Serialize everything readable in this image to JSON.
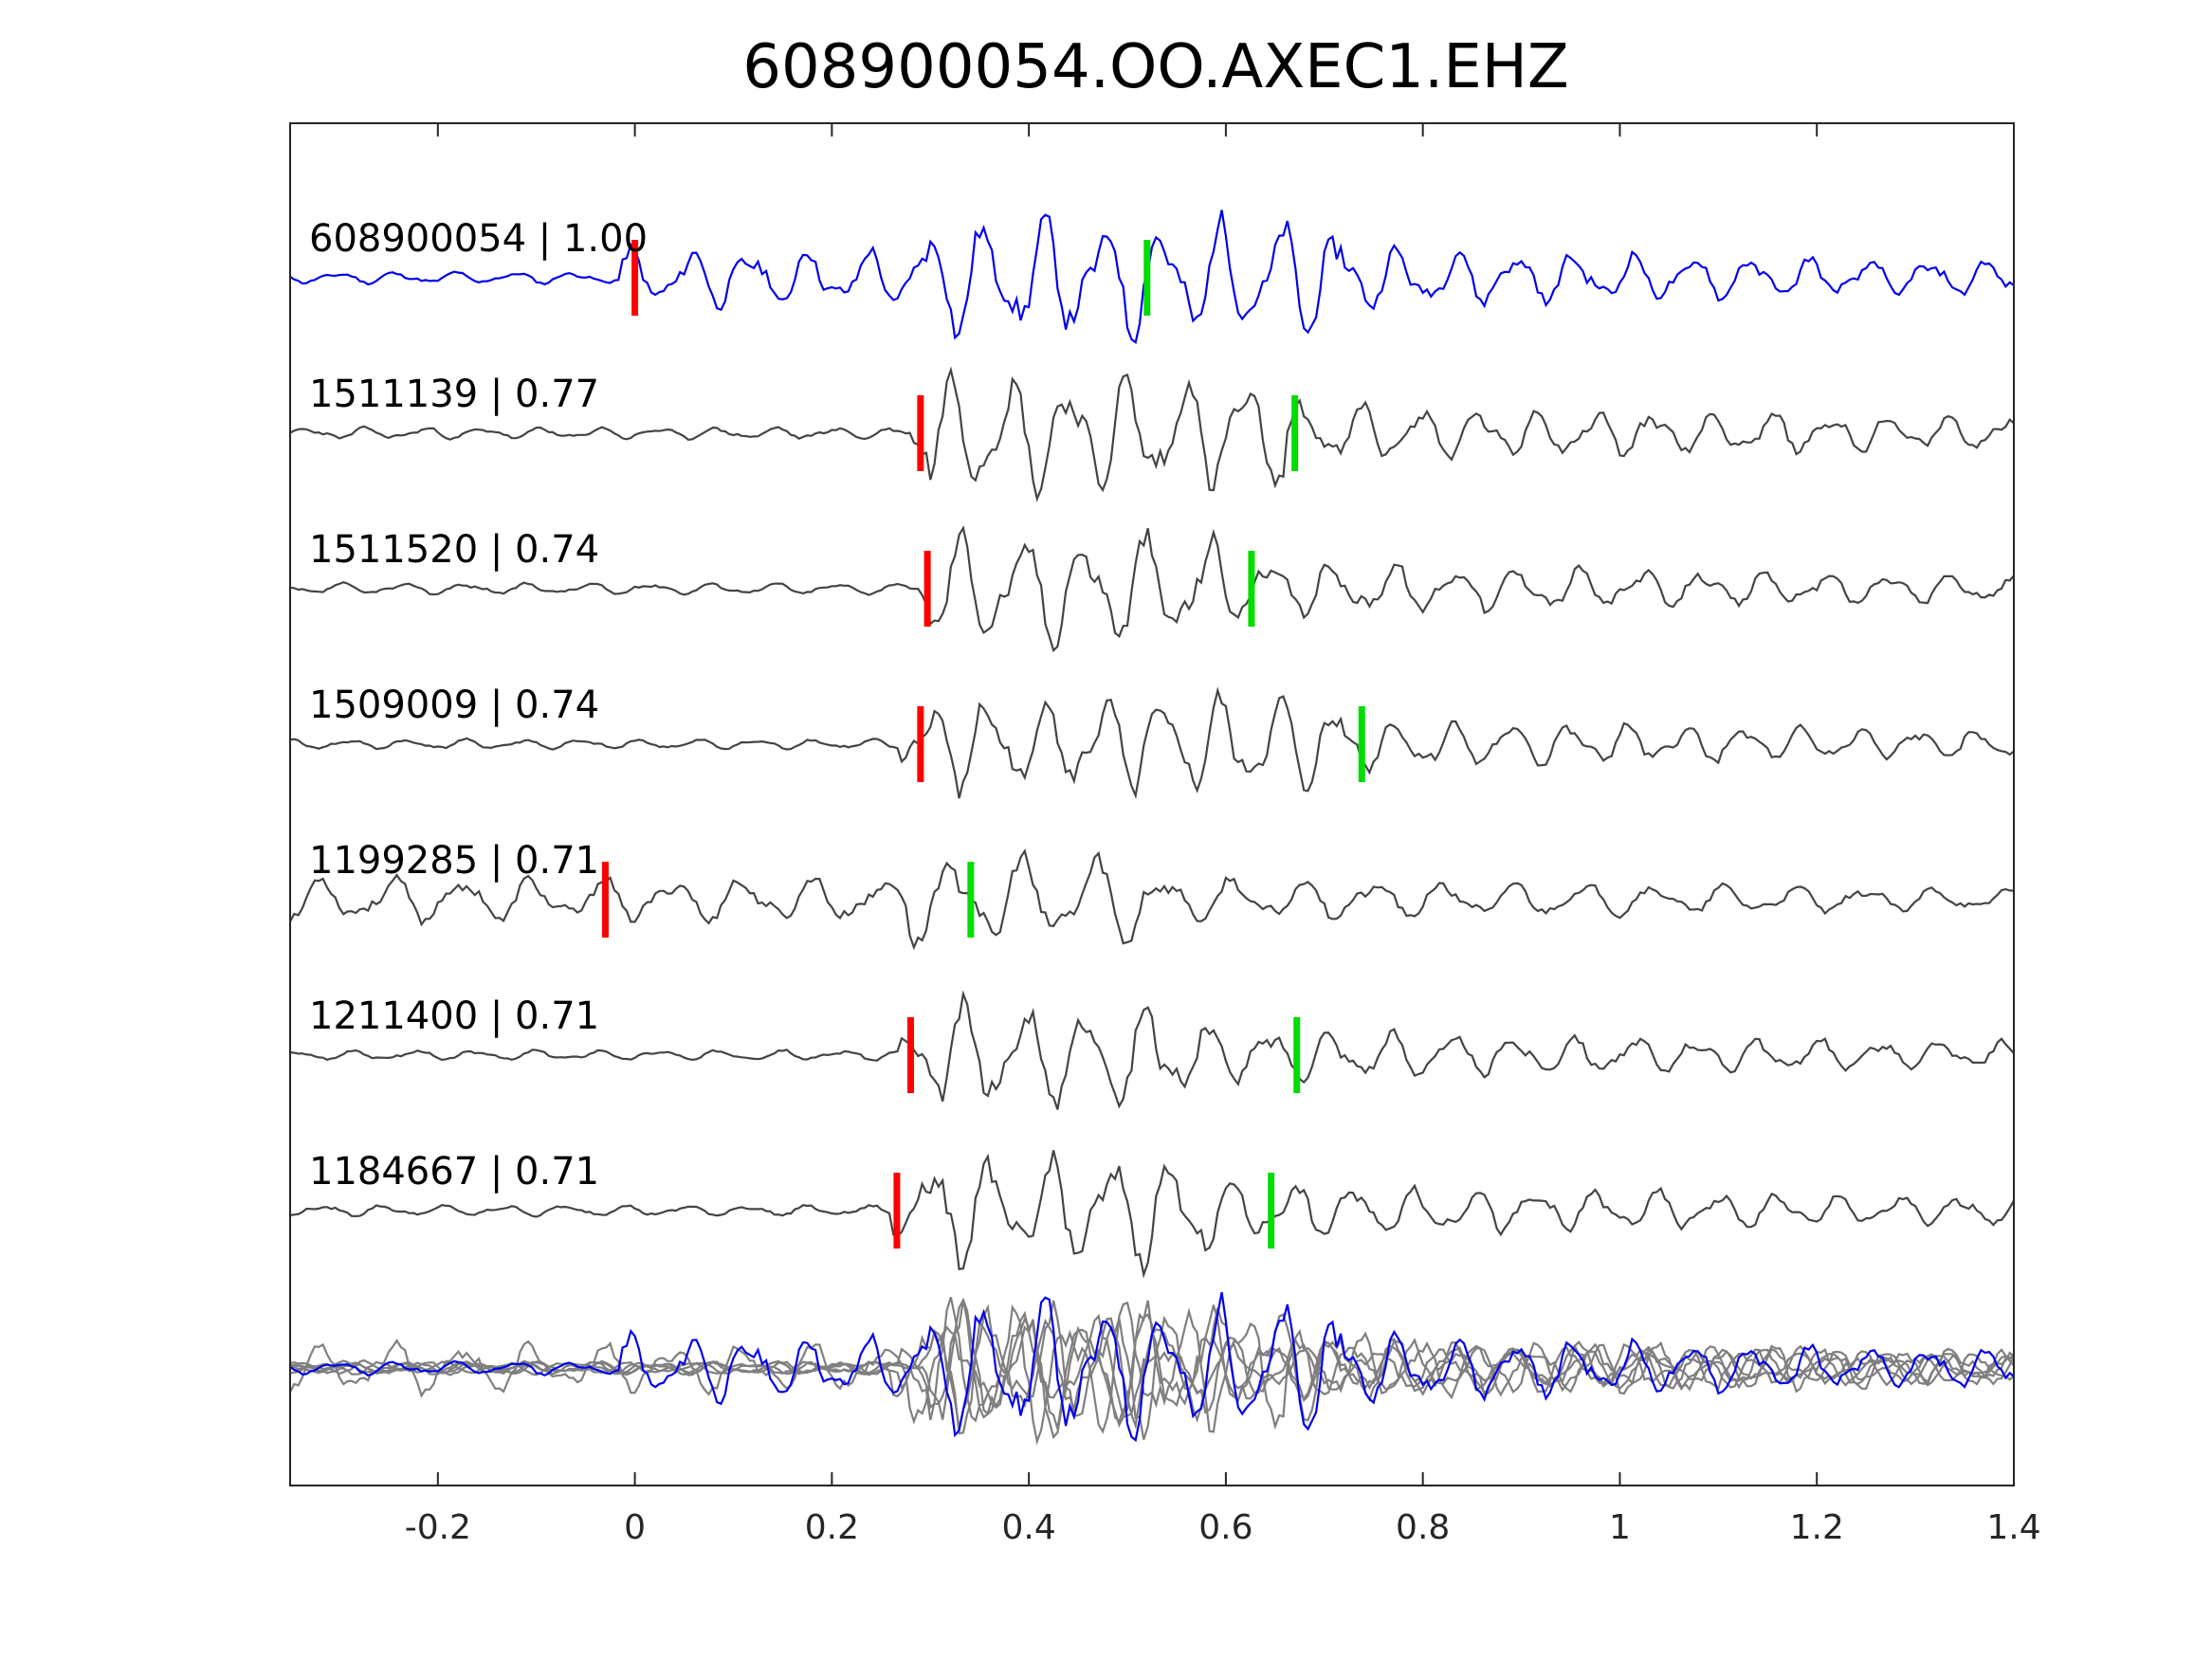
{
  "chart_data": {
    "type": "line",
    "title": "608900054.OO.AXEC1.EHZ",
    "xlabel": "",
    "ylabel": "",
    "xlim": [
      -0.35,
      1.4
    ],
    "xticks": [
      -0.2,
      0,
      0.2,
      0.4,
      0.6,
      0.8,
      1,
      1.2,
      1.4
    ],
    "xtick_labels": [
      "-0.2",
      "0",
      "0.2",
      "0.4",
      "0.6",
      "0.8",
      "1",
      "1.2",
      "1.4"
    ],
    "grid": false,
    "colors": {
      "template": "#0000ee",
      "trace": "#444444",
      "overlay": "#7f7f7f",
      "p_pick": "#ff0000",
      "s_pick": "#00dd00",
      "axes": "#262626"
    },
    "series": [
      {
        "label": "608900054 | 1.00",
        "event_id": "608900054",
        "correlation": 1.0,
        "p_pick": 0.0,
        "s_pick": 0.52,
        "onset": -0.02,
        "strong_start": 0.29,
        "strong_end": 0.72,
        "amp": 0.9,
        "seed": 11,
        "template": true
      },
      {
        "label": "1511139 | 0.77",
        "event_id": "1511139",
        "correlation": 0.77,
        "p_pick": 0.29,
        "s_pick": 0.67,
        "onset": 0.28,
        "strong_start": 0.3,
        "strong_end": 0.66,
        "amp": 0.9,
        "seed": 23
      },
      {
        "label": "1511520 | 0.74",
        "event_id": "1511520",
        "correlation": 0.74,
        "p_pick": 0.297,
        "s_pick": 0.626,
        "onset": 0.29,
        "strong_start": 0.3,
        "strong_end": 0.6,
        "amp": 0.85,
        "seed": 37
      },
      {
        "label": "1509009 | 0.74",
        "event_id": "1509009",
        "correlation": 0.74,
        "p_pick": 0.29,
        "s_pick": 0.738,
        "onset": 0.27,
        "strong_start": 0.3,
        "strong_end": 0.72,
        "amp": 0.75,
        "seed": 41
      },
      {
        "label": "1199285 | 0.71",
        "event_id": "1199285",
        "correlation": 0.71,
        "p_pick": -0.03,
        "s_pick": 0.341,
        "onset": -0.35,
        "strong_start": 0.27,
        "strong_end": 0.52,
        "amp": 0.7,
        "seed": 53
      },
      {
        "label": "1211400 | 0.71",
        "event_id": "1211400",
        "correlation": 0.71,
        "p_pick": 0.28,
        "s_pick": 0.672,
        "onset": 0.27,
        "strong_start": 0.3,
        "strong_end": 0.58,
        "amp": 0.8,
        "seed": 67
      },
      {
        "label": "1184667 | 0.71",
        "event_id": "1184667",
        "correlation": 0.71,
        "p_pick": 0.266,
        "s_pick": 0.646,
        "onset": 0.26,
        "strong_start": 0.28,
        "strong_end": 0.6,
        "amp": 0.85,
        "seed": 79
      }
    ]
  }
}
